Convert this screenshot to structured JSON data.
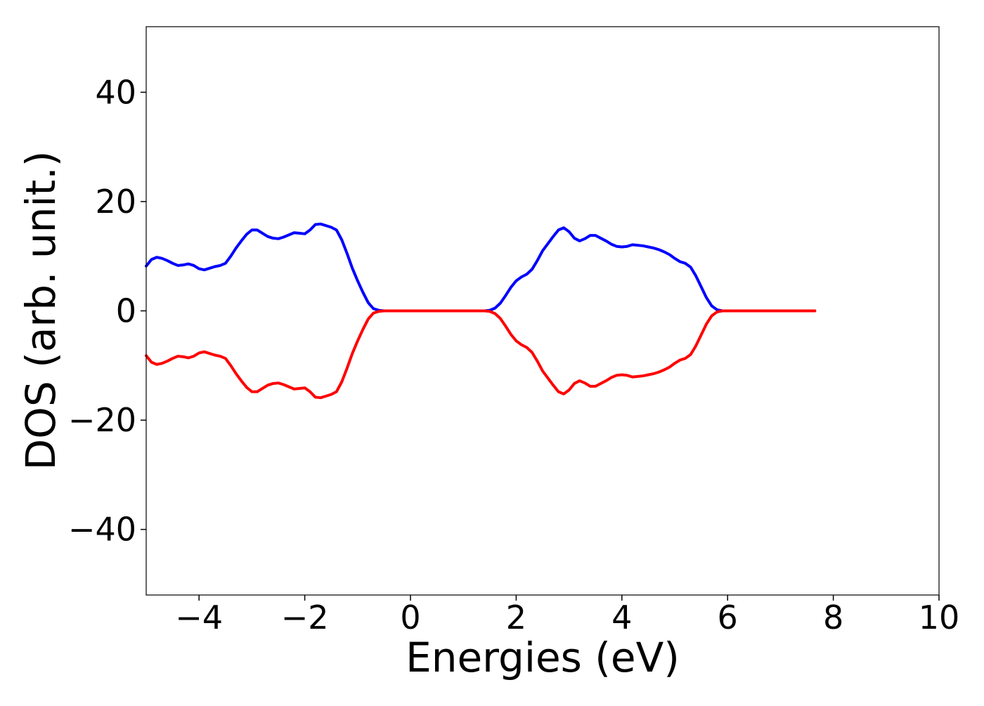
{
  "chart_data": {
    "type": "line",
    "title": "",
    "xlabel": "Energies (eV)",
    "ylabel": "DOS (arb. unit.)",
    "xlim": [
      -5,
      10
    ],
    "ylim": [
      -52,
      52
    ],
    "xticks": [
      -4,
      -2,
      0,
      2,
      4,
      6,
      8,
      10
    ],
    "yticks": [
      -40,
      -20,
      0,
      20,
      40
    ],
    "xtick_labels": [
      "−4",
      "−2",
      "0",
      "2",
      "4",
      "6",
      "8",
      "10"
    ],
    "ytick_labels": [
      "−40",
      "−20",
      "0",
      "20",
      "40"
    ],
    "grid": false,
    "legend": "none",
    "series": [
      {
        "color": "#0000ff",
        "points": [
          [
            -5.0,
            8.2
          ],
          [
            -4.9,
            9.4
          ],
          [
            -4.8,
            9.8
          ],
          [
            -4.7,
            9.6
          ],
          [
            -4.6,
            9.2
          ],
          [
            -4.5,
            8.7
          ],
          [
            -4.4,
            8.3
          ],
          [
            -4.3,
            8.4
          ],
          [
            -4.2,
            8.6
          ],
          [
            -4.1,
            8.3
          ],
          [
            -4.0,
            7.7
          ],
          [
            -3.9,
            7.5
          ],
          [
            -3.8,
            7.8
          ],
          [
            -3.7,
            8.1
          ],
          [
            -3.6,
            8.3
          ],
          [
            -3.5,
            8.7
          ],
          [
            -3.4,
            10.0
          ],
          [
            -3.3,
            11.5
          ],
          [
            -3.2,
            12.8
          ],
          [
            -3.1,
            14.0
          ],
          [
            -3.0,
            14.8
          ],
          [
            -2.9,
            14.8
          ],
          [
            -2.8,
            14.2
          ],
          [
            -2.7,
            13.6
          ],
          [
            -2.6,
            13.3
          ],
          [
            -2.5,
            13.2
          ],
          [
            -2.4,
            13.5
          ],
          [
            -2.3,
            13.9
          ],
          [
            -2.2,
            14.3
          ],
          [
            -2.1,
            14.2
          ],
          [
            -2.0,
            14.1
          ],
          [
            -1.9,
            14.8
          ],
          [
            -1.8,
            15.8
          ],
          [
            -1.7,
            15.9
          ],
          [
            -1.6,
            15.6
          ],
          [
            -1.5,
            15.3
          ],
          [
            -1.4,
            14.8
          ],
          [
            -1.3,
            13.0
          ],
          [
            -1.2,
            10.5
          ],
          [
            -1.1,
            7.8
          ],
          [
            -1.0,
            5.5
          ],
          [
            -0.9,
            3.4
          ],
          [
            -0.8,
            1.5
          ],
          [
            -0.7,
            0.4
          ],
          [
            -0.6,
            0.1
          ],
          [
            -0.5,
            0.0
          ],
          [
            0.0,
            0.0
          ],
          [
            0.5,
            0.0
          ],
          [
            1.0,
            0.0
          ],
          [
            1.4,
            0.0
          ],
          [
            1.5,
            0.1
          ],
          [
            1.6,
            0.5
          ],
          [
            1.7,
            1.4
          ],
          [
            1.8,
            2.8
          ],
          [
            1.9,
            4.3
          ],
          [
            2.0,
            5.5
          ],
          [
            2.1,
            6.2
          ],
          [
            2.2,
            6.7
          ],
          [
            2.3,
            7.6
          ],
          [
            2.4,
            9.2
          ],
          [
            2.5,
            11.0
          ],
          [
            2.6,
            12.3
          ],
          [
            2.7,
            13.6
          ],
          [
            2.8,
            14.8
          ],
          [
            2.9,
            15.2
          ],
          [
            3.0,
            14.5
          ],
          [
            3.1,
            13.3
          ],
          [
            3.2,
            12.8
          ],
          [
            3.3,
            13.2
          ],
          [
            3.4,
            13.8
          ],
          [
            3.5,
            13.8
          ],
          [
            3.6,
            13.3
          ],
          [
            3.7,
            12.8
          ],
          [
            3.8,
            12.2
          ],
          [
            3.9,
            11.8
          ],
          [
            4.0,
            11.7
          ],
          [
            4.1,
            11.8
          ],
          [
            4.2,
            12.1
          ],
          [
            4.3,
            12.0
          ],
          [
            4.4,
            11.9
          ],
          [
            4.5,
            11.7
          ],
          [
            4.6,
            11.5
          ],
          [
            4.7,
            11.2
          ],
          [
            4.8,
            10.8
          ],
          [
            4.9,
            10.3
          ],
          [
            5.0,
            9.6
          ],
          [
            5.1,
            9.0
          ],
          [
            5.2,
            8.7
          ],
          [
            5.3,
            8.0
          ],
          [
            5.4,
            6.4
          ],
          [
            5.5,
            4.4
          ],
          [
            5.6,
            2.4
          ],
          [
            5.7,
            0.9
          ],
          [
            5.8,
            0.2
          ],
          [
            5.9,
            0.0
          ],
          [
            6.5,
            0.0
          ],
          [
            7.0,
            0.0
          ],
          [
            7.65,
            0.0
          ]
        ]
      },
      {
        "color": "#ff0000",
        "points": [
          [
            -5.0,
            -8.2
          ],
          [
            -4.9,
            -9.4
          ],
          [
            -4.8,
            -9.8
          ],
          [
            -4.7,
            -9.6
          ],
          [
            -4.6,
            -9.2
          ],
          [
            -4.5,
            -8.7
          ],
          [
            -4.4,
            -8.3
          ],
          [
            -4.3,
            -8.4
          ],
          [
            -4.2,
            -8.6
          ],
          [
            -4.1,
            -8.3
          ],
          [
            -4.0,
            -7.7
          ],
          [
            -3.9,
            -7.5
          ],
          [
            -3.8,
            -7.8
          ],
          [
            -3.7,
            -8.1
          ],
          [
            -3.6,
            -8.3
          ],
          [
            -3.5,
            -8.7
          ],
          [
            -3.4,
            -10.0
          ],
          [
            -3.3,
            -11.5
          ],
          [
            -3.2,
            -12.8
          ],
          [
            -3.1,
            -14.0
          ],
          [
            -3.0,
            -14.8
          ],
          [
            -2.9,
            -14.8
          ],
          [
            -2.8,
            -14.2
          ],
          [
            -2.7,
            -13.6
          ],
          [
            -2.6,
            -13.3
          ],
          [
            -2.5,
            -13.2
          ],
          [
            -2.4,
            -13.5
          ],
          [
            -2.3,
            -13.9
          ],
          [
            -2.2,
            -14.3
          ],
          [
            -2.1,
            -14.2
          ],
          [
            -2.0,
            -14.1
          ],
          [
            -1.9,
            -14.8
          ],
          [
            -1.8,
            -15.8
          ],
          [
            -1.7,
            -15.9
          ],
          [
            -1.6,
            -15.6
          ],
          [
            -1.5,
            -15.3
          ],
          [
            -1.4,
            -14.8
          ],
          [
            -1.3,
            -13.0
          ],
          [
            -1.2,
            -10.5
          ],
          [
            -1.1,
            -7.8
          ],
          [
            -1.0,
            -5.5
          ],
          [
            -0.9,
            -3.4
          ],
          [
            -0.8,
            -1.5
          ],
          [
            -0.7,
            -0.4
          ],
          [
            -0.6,
            -0.1
          ],
          [
            -0.5,
            0.0
          ],
          [
            0.0,
            0.0
          ],
          [
            0.5,
            0.0
          ],
          [
            1.0,
            0.0
          ],
          [
            1.4,
            0.0
          ],
          [
            1.5,
            -0.1
          ],
          [
            1.6,
            -0.5
          ],
          [
            1.7,
            -1.4
          ],
          [
            1.8,
            -2.8
          ],
          [
            1.9,
            -4.3
          ],
          [
            2.0,
            -5.5
          ],
          [
            2.1,
            -6.2
          ],
          [
            2.2,
            -6.7
          ],
          [
            2.3,
            -7.6
          ],
          [
            2.4,
            -9.2
          ],
          [
            2.5,
            -11.0
          ],
          [
            2.6,
            -12.3
          ],
          [
            2.7,
            -13.6
          ],
          [
            2.8,
            -14.8
          ],
          [
            2.9,
            -15.2
          ],
          [
            3.0,
            -14.5
          ],
          [
            3.1,
            -13.3
          ],
          [
            3.2,
            -12.8
          ],
          [
            3.3,
            -13.2
          ],
          [
            3.4,
            -13.8
          ],
          [
            3.5,
            -13.8
          ],
          [
            3.6,
            -13.3
          ],
          [
            3.7,
            -12.8
          ],
          [
            3.8,
            -12.2
          ],
          [
            3.9,
            -11.8
          ],
          [
            4.0,
            -11.7
          ],
          [
            4.1,
            -11.8
          ],
          [
            4.2,
            -12.1
          ],
          [
            4.3,
            -12.0
          ],
          [
            4.4,
            -11.9
          ],
          [
            4.5,
            -11.7
          ],
          [
            4.6,
            -11.5
          ],
          [
            4.7,
            -11.2
          ],
          [
            4.8,
            -10.8
          ],
          [
            4.9,
            -10.3
          ],
          [
            5.0,
            -9.6
          ],
          [
            5.1,
            -9.0
          ],
          [
            5.2,
            -8.7
          ],
          [
            5.3,
            -8.0
          ],
          [
            5.4,
            -6.4
          ],
          [
            5.5,
            -4.4
          ],
          [
            5.6,
            -2.4
          ],
          [
            5.7,
            -0.9
          ],
          [
            5.8,
            -0.2
          ],
          [
            5.9,
            0.0
          ],
          [
            6.5,
            0.0
          ],
          [
            7.0,
            0.0
          ],
          [
            7.65,
            0.0
          ]
        ]
      }
    ]
  }
}
